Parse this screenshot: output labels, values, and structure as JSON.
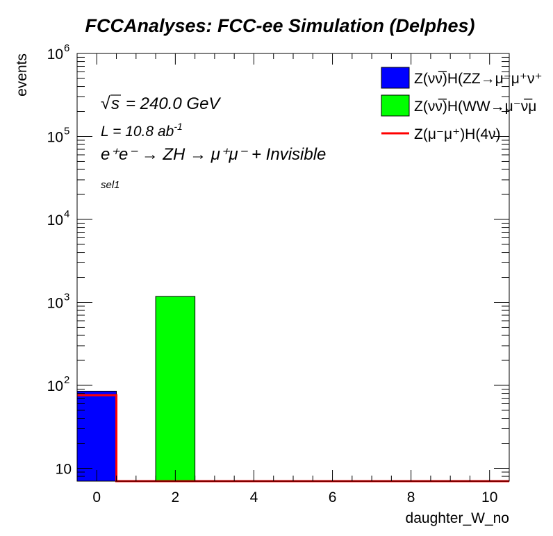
{
  "chart_data": {
    "type": "bar",
    "title": "FCCAnalyses: FCC-ee Simulation (Delphes)",
    "xlabel": "daughter_W_no",
    "ylabel": "events",
    "xlim": [
      -0.5,
      10.5
    ],
    "ylim": [
      7,
      1000000
    ],
    "yscale": "log",
    "x_ticks": [
      0,
      2,
      4,
      6,
      8,
      10
    ],
    "y_ticks": [
      {
        "value": 10,
        "label": "10"
      },
      {
        "value": 100,
        "label": "10",
        "exp": "2"
      },
      {
        "value": 1000,
        "label": "10",
        "exp": "3"
      },
      {
        "value": 10000,
        "label": "10",
        "exp": "4"
      },
      {
        "value": 100000,
        "label": "10",
        "exp": "5"
      },
      {
        "value": 1000000,
        "label": "10",
        "exp": "6"
      }
    ],
    "bin_edges": [
      -0.5,
      0.5,
      1.5,
      2.5,
      3.5,
      4.5,
      5.5,
      6.5,
      7.5,
      8.5,
      9.5,
      10.5
    ],
    "grid": false,
    "legend_position": "top-right",
    "series": [
      {
        "name": "Z(νν̅)H(ZZ→μ⁻μ⁺ν⁺",
        "style": "filled",
        "color": "#0000ff",
        "values": [
          85,
          0,
          0,
          0,
          0,
          0,
          0,
          0,
          0,
          0,
          0
        ]
      },
      {
        "name": "Z(νν̅)H(WW→μ⁻ν̅μ",
        "style": "filled",
        "color": "#00ff00",
        "values": [
          0,
          0,
          1180,
          0,
          0,
          0,
          0,
          0,
          0,
          0,
          0
        ]
      },
      {
        "name": "Z(μ⁻μ⁺)H(4ν)",
        "style": "line",
        "color": "#ff0000",
        "values": [
          76,
          0,
          0,
          0,
          0,
          0,
          0,
          0,
          0,
          0,
          0
        ]
      }
    ],
    "annotations": {
      "sqrt_s": "= 240.0 GeV",
      "sqrt_sym": "√",
      "sqrt_s_var": "s",
      "lumi": "L = 10.8 ab",
      "lumi_exp": "-1",
      "process": "e⁺e⁻ → ZH → μ⁺μ⁻ + Invisible",
      "selection": "sel1"
    }
  }
}
